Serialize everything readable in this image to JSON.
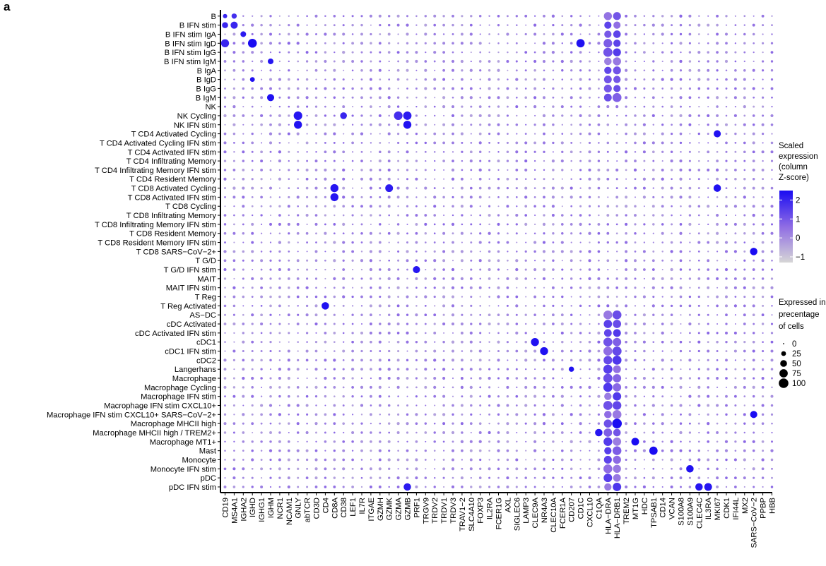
{
  "panel_label": "a",
  "chart_data": {
    "type": "dot-heatmap",
    "rows": [
      "B",
      "B IFN stim",
      "B IFN stim IgA",
      "B IFN stim IgD",
      "B IFN stim IgG",
      "B IFN stim IgM",
      "B IgA",
      "B IgD",
      "B IgG",
      "B IgM",
      "NK",
      "NK Cycling",
      "NK IFN stim",
      "T CD4 Activated Cycling",
      "T CD4 Activated Cycling IFN stim",
      "T CD4 Activated IFN stim",
      "T CD4 Infiltrating Memory",
      "T CD4 Infiltrating Memory IFN stim",
      "T CD4 Resident Memory",
      "T CD8 Activated Cycling",
      "T CD8 Activated IFN stim",
      "T CD8 Cycling",
      "T CD8 Infiltrating Memory",
      "T CD8 Infiltrating Memory IFN stim",
      "T CD8 Resident Memory",
      "T CD8 Resident Memory IFN stim",
      "T CD8 SARS−CoV−2+",
      "T G/D",
      "T G/D IFN stim",
      "MAIT",
      "MAIT IFN stim",
      "T Reg",
      "T Reg Activated",
      "AS−DC",
      "cDC Activated",
      "cDC Activated IFN stim",
      "cDC1",
      "cDC1 IFN stim",
      "cDC2",
      "Langerhans",
      "Macrophage",
      "Macrophage Cycling",
      "Macrophage IFN stim",
      "Macrophage IFN stim CXCL10+",
      "Macrophage IFN stim CXCL10+ SARS−CoV−2+",
      "Macrophage MHCII high",
      "Macrophage MHCII high / TREM2+",
      "Macrophage MT1+",
      "Mast",
      "Monocyte",
      "Monocyte IFN stim",
      "pDC",
      "pDC IFN stim"
    ],
    "columns": [
      "CD19",
      "MS4A1",
      "IGHA2",
      "IGHD",
      "IGHG1",
      "IGHM",
      "NCR1",
      "NCAM1",
      "GNLY",
      "abTCR",
      "CD3D",
      "CD4",
      "CD8A",
      "CD38",
      "LEF1",
      "IL7R",
      "ITGAE",
      "GZMH",
      "GZMK",
      "GZMA",
      "GZMB",
      "PRF1",
      "TRGV9",
      "TRDV2",
      "TRDV1",
      "TRDV3",
      "TRAV1−2",
      "SLC4A10",
      "FOXP3",
      "IL2RA",
      "FCER1G",
      "AXL",
      "SIGLEC6",
      "LAMP3",
      "CLEC9A",
      "NR4A3",
      "CLEC10A",
      "FCER1A",
      "CD207",
      "CD1C",
      "CXCL10",
      "C1QA",
      "HLA−DRA",
      "HLA−DRB1",
      "TREM2",
      "MT1G",
      "HDC",
      "TPSAB1",
      "CD14",
      "VCAN",
      "S100A8",
      "S100A9",
      "CLEC4C",
      "IL3RA",
      "MKI67",
      "CDK1",
      "IFI44L",
      "MX2",
      "SARS−CoV−2",
      "PPBP",
      "HBB"
    ],
    "notable_points": [
      {
        "row": "B",
        "col": "CD19",
        "size": 20,
        "z": 2
      },
      {
        "row": "B",
        "col": "MS4A1",
        "size": 30,
        "z": 1.8
      },
      {
        "row": "B IFN stim",
        "col": "CD19",
        "size": 40,
        "z": 2
      },
      {
        "row": "B IFN stim",
        "col": "MS4A1",
        "size": 55,
        "z": 2
      },
      {
        "row": "B IFN stim IgA",
        "col": "IGHA2",
        "size": 35,
        "z": 2.2
      },
      {
        "row": "B IFN stim IgD",
        "col": "CD19",
        "size": 70,
        "z": 2
      },
      {
        "row": "B IFN stim IgD",
        "col": "IGHD",
        "size": 85,
        "z": 2.5
      },
      {
        "row": "B IFN stim IgM",
        "col": "IGHM",
        "size": 35,
        "z": 2.3
      },
      {
        "row": "B IgM",
        "col": "IGHM",
        "size": 55,
        "z": 2.4
      },
      {
        "row": "B IgD",
        "col": "IGHD",
        "size": 25,
        "z": 2.4
      },
      {
        "row": "B IFN stim IgD",
        "col": "CD1C",
        "size": 75,
        "z": 2.4
      },
      {
        "row": "NK Cycling",
        "col": "GNLY",
        "size": 80,
        "z": 2.3
      },
      {
        "row": "NK IFN stim",
        "col": "GNLY",
        "size": 70,
        "z": 2.4
      },
      {
        "row": "NK Cycling",
        "col": "GZMA",
        "size": 80,
        "z": 1.8
      },
      {
        "row": "NK Cycling",
        "col": "GZMB",
        "size": 75,
        "z": 2.2
      },
      {
        "row": "NK IFN stim",
        "col": "GZMB",
        "size": 70,
        "z": 2.4
      },
      {
        "row": "NK Cycling",
        "col": "CD38",
        "size": 50,
        "z": 2
      },
      {
        "row": "T CD4 Activated Cycling",
        "col": "MKI67",
        "size": 55,
        "z": 2.4
      },
      {
        "row": "T CD8 Activated Cycling",
        "col": "MKI67",
        "size": 60,
        "z": 2.4
      },
      {
        "row": "T CD8 Activated Cycling",
        "col": "CD8A",
        "size": 70,
        "z": 2.3
      },
      {
        "row": "T CD8 Activated IFN stim",
        "col": "CD8A",
        "size": 70,
        "z": 2.3
      },
      {
        "row": "T CD8 Activated Cycling",
        "col": "GZMK",
        "size": 65,
        "z": 2.2
      },
      {
        "row": "T CD8 SARS−CoV−2+",
        "col": "SARS−CoV−2",
        "size": 60,
        "z": 2.6
      },
      {
        "row": "T G/D IFN stim",
        "col": "PRF1",
        "size": 55,
        "z": 2.3
      },
      {
        "row": "T Reg Activated",
        "col": "CD4",
        "size": 60,
        "z": 2.4
      },
      {
        "row": "cDC1",
        "col": "CLEC9A",
        "size": 70,
        "z": 2.4
      },
      {
        "row": "cDC1 IFN stim",
        "col": "NR4A3",
        "size": 70,
        "z": 2.4
      },
      {
        "row": "Langerhans",
        "col": "CD207",
        "size": 30,
        "z": 2.4
      },
      {
        "row": "Macrophage MHCII high",
        "col": "HLA−DRB1",
        "size": 100,
        "z": 2.5
      },
      {
        "row": "Macrophage MHCII high / TREM2+",
        "col": "C1QA",
        "size": 60,
        "z": 2.3
      },
      {
        "row": "Macrophage MT1+",
        "col": "MT1G",
        "size": 65,
        "z": 2.6
      },
      {
        "row": "Mast",
        "col": "TPSAB1",
        "size": 75,
        "z": 2.5
      },
      {
        "row": "Monocyte IFN stim",
        "col": "S100A9",
        "size": 60,
        "z": 2.4
      },
      {
        "row": "pDC IFN stim",
        "col": "CLEC4C",
        "size": 60,
        "z": 2.3
      },
      {
        "row": "pDC IFN stim",
        "col": "IL3RA",
        "size": 65,
        "z": 2.3
      },
      {
        "row": "Macrophage IFN stim CXCL10+ SARS−CoV−2+",
        "col": "SARS−CoV−2",
        "size": 55,
        "z": 2.5
      },
      {
        "row": "pDC IFN stim",
        "col": "GZMB",
        "size": 60,
        "z": 2.2
      }
    ],
    "color_legend": {
      "title": [
        "Scaled",
        "expression",
        "(column",
        "Z-score)"
      ],
      "ticks": [
        "2",
        "1",
        "0",
        "−1"
      ],
      "range": [
        -1.3,
        2.5
      ],
      "colors": [
        "#d6d6d6",
        "#8f6ce4",
        "#1a0cf2"
      ]
    },
    "size_legend": {
      "title": [
        "Expressed in",
        "precentage",
        "of cells"
      ],
      "values": [
        0,
        25,
        50,
        75,
        100
      ],
      "labels": [
        "0",
        "25",
        "50",
        "75",
        "100"
      ]
    }
  }
}
